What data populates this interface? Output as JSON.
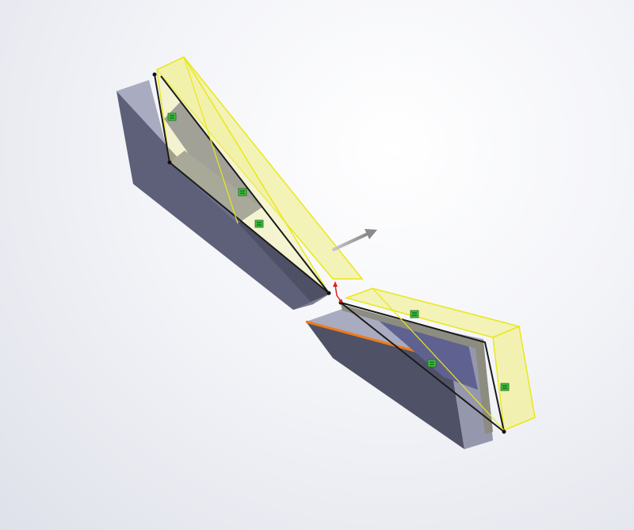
{
  "window": {
    "background": "gradient-white-grey"
  },
  "colors": {
    "body_side": "#5a5d73",
    "body_top": "#a9abc0",
    "body_face": "#6c6f90",
    "selection_fill": "#f2f0a0",
    "selection_edge": "#e8e81a",
    "edge_dark": "#1a1a1a",
    "highlight_edge": "#f07a1a",
    "triad_red": "#e02020",
    "mate_badge": "#3fc23f",
    "drag_arrow": "#9c9c9c"
  },
  "model": {
    "upper_part": "wedge-body-upper",
    "lower_part": "wedge-body-lower",
    "upper_selection": "selected-weldment-upper",
    "lower_selection": "selected-weldment-lower"
  },
  "icons": {
    "mate_badges": [
      "mate-badge-icon",
      "mate-badge-icon",
      "mate-badge-icon",
      "mate-badge-icon",
      "mate-badge-icon"
    ],
    "move_arrow": "move-arrow-icon",
    "pivot": "triad-pivot-icon"
  }
}
